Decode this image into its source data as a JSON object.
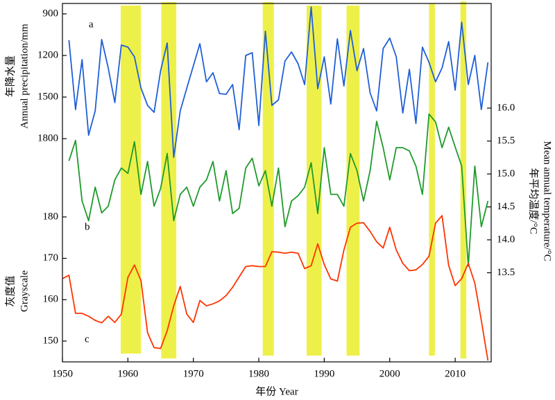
{
  "chart_data": {
    "type": "line",
    "x": [
      1950,
      1951,
      1952,
      1953,
      1954,
      1955,
      1956,
      1957,
      1958,
      1959,
      1960,
      1961,
      1962,
      1963,
      1964,
      1965,
      1966,
      1967,
      1968,
      1969,
      1970,
      1971,
      1972,
      1973,
      1974,
      1975,
      1976,
      1977,
      1978,
      1979,
      1980,
      1981,
      1982,
      1983,
      1984,
      1985,
      1986,
      1987,
      1988,
      1989,
      1990,
      1991,
      1992,
      1993,
      1994,
      1995,
      1996,
      1997,
      1998,
      1999,
      2000,
      2001,
      2002,
      2003,
      2004,
      2005,
      2006,
      2007,
      2008,
      2009,
      2010,
      2011,
      2012,
      2013,
      2014,
      2015
    ],
    "xlim": [
      1950,
      2015.5
    ],
    "xticks": [
      1950,
      1960,
      1970,
      1980,
      1990,
      2000,
      2010
    ],
    "xlabel": "年份  Year",
    "ylabel": [
      "年降水量",
      "Annual precipitation/mm"
    ],
    "y3label": [
      "灰度值",
      "Grayscale"
    ],
    "y2label": [
      "年平均温度/°C",
      "Mean annual temperature/°C"
    ],
    "ylim": [
      3410,
      825
    ],
    "yticks": [
      900,
      1200,
      1500,
      1800
    ],
    "y2lim": [
      12.147,
      17.589
    ],
    "y2ticks": [
      13.5,
      {
        "value": 14,
        "label": "14.0"
      },
      14.5,
      {
        "value": 15,
        "label": "15.0"
      },
      15.5,
      {
        "value": 16,
        "label": "16.0"
      }
    ],
    "y3lim": [
      144.97,
      231.59
    ],
    "y3ticks": [
      150,
      160,
      170,
      180
    ],
    "highlights": [
      [
        1958.9,
        1962.0
      ],
      [
        1965.1,
        1967.4
      ],
      [
        1980.6,
        1982.3
      ],
      [
        1987.3,
        1989.6
      ],
      [
        1993.4,
        1995.4
      ],
      [
        2006.0,
        2006.9
      ],
      [
        2010.8,
        2011.7
      ]
    ],
    "highlight_color": "#eef04a",
    "annotations": [
      "a",
      "b",
      "c"
    ],
    "series": [
      {
        "name": "a",
        "color": "#1f5fd6",
        "axis": "y",
        "values": [
          null,
          1090,
          1590,
          1230,
          1775,
          1600,
          1085,
          1290,
          1540,
          1125,
          1140,
          1210,
          1435,
          1560,
          1610,
          1310,
          1110,
          1935,
          1600,
          1435,
          1275,
          1115,
          1390,
          1325,
          1475,
          1480,
          1410,
          1735,
          1200,
          1180,
          1705,
          1025,
          1560,
          1520,
          1240,
          1175,
          1260,
          1410,
          850,
          1440,
          1210,
          1550,
          1080,
          1420,
          1020,
          1310,
          1150,
          1470,
          1600,
          1150,
          1075,
          1210,
          1615,
          1300,
          1690,
          1140,
          1250,
          1390,
          1290,
          1100,
          1450,
          960,
          1410,
          1200,
          1590,
          1250
        ]
      },
      {
        "name": "b",
        "color": "#1e9a2a",
        "axis": "y2",
        "values": [
          null,
          15.2,
          15.51,
          14.59,
          14.29,
          14.8,
          14.41,
          14.51,
          14.91,
          15.09,
          15.01,
          15.49,
          14.69,
          15.19,
          14.51,
          14.78,
          15.31,
          14.29,
          14.69,
          14.8,
          14.51,
          14.8,
          14.91,
          15.19,
          14.59,
          15.05,
          14.4,
          14.48,
          15.09,
          15.24,
          14.82,
          15.05,
          14.51,
          15.09,
          14.2,
          14.59,
          14.67,
          14.8,
          15.17,
          14.4,
          15.4,
          14.69,
          14.69,
          14.51,
          15.31,
          15.05,
          14.59,
          15.05,
          15.8,
          15.4,
          14.91,
          15.4,
          15.4,
          15.35,
          15.12,
          14.69,
          15.91,
          15.79,
          15.4,
          15.71,
          15.41,
          15.12,
          13.6,
          15.12,
          14.2,
          14.59
        ]
      },
      {
        "name": "c",
        "color": "#ff3300",
        "axis": "y3",
        "values": [
          165.1,
          165.9,
          156.7,
          156.7,
          156,
          155,
          154.4,
          156,
          154.5,
          156.5,
          165.4,
          168.4,
          164.6,
          152,
          148.4,
          148.2,
          152.5,
          158.5,
          163.2,
          156.5,
          154.5,
          159.8,
          158.5,
          159,
          159.7,
          161,
          163,
          165.5,
          168,
          168.2,
          168,
          168,
          171.6,
          171.5,
          171.2,
          171.5,
          171.2,
          167.5,
          168.2,
          173.5,
          168.5,
          165,
          164.5,
          172,
          177.5,
          178.5,
          178.6,
          176.5,
          174,
          172.5,
          177.5,
          172,
          168.8,
          167,
          167.2,
          168.5,
          170.5,
          178.5,
          180.3,
          168.3,
          163.4,
          165.1,
          168.8,
          164,
          155,
          145.3
        ]
      }
    ]
  }
}
